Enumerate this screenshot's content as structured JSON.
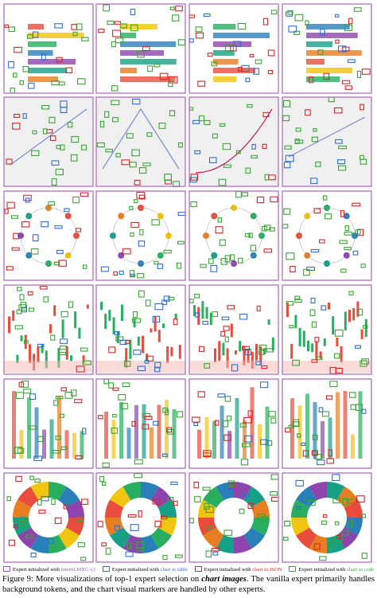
{
  "legend": [
    {
      "prefix": "Expert initialized with",
      "name": "InternLMXC-v2",
      "color": "#9b59b6"
    },
    {
      "prefix": "Expert initialized with",
      "name": "chart to table",
      "color": "#2e6fd8"
    },
    {
      "prefix": "Expert initialized with",
      "name": "chart to JSON",
      "color": "#d62728"
    },
    {
      "prefix": "Expert initialized with",
      "name": "chart to code",
      "color": "#3aa635"
    }
  ],
  "caption": {
    "prefix": "Figure 9: More visualizations of top-1 expert selection on ",
    "emphasis": "chart images",
    "suffix": ". The vanilla expert primarily handles background tokens, and the chart visual markers are handled by other experts."
  }
}
